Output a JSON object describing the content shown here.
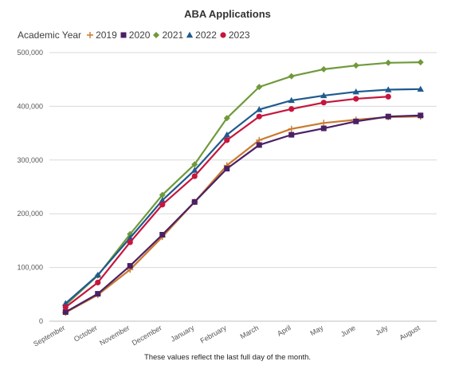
{
  "chart_data": {
    "type": "line",
    "title": "ABA Applications",
    "legend_title": "Academic Year",
    "legend_position": "top-left",
    "xlabel": "",
    "ylabel": "",
    "ylim": [
      0,
      500000
    ],
    "y_ticks": [
      "0",
      "100,000",
      "200,000",
      "300,000",
      "400,000",
      "500,000"
    ],
    "y_tick_values": [
      0,
      100000,
      200000,
      300000,
      400000,
      500000
    ],
    "grid": true,
    "categories": [
      "September",
      "October",
      "November",
      "December",
      "January",
      "February",
      "March",
      "April",
      "May",
      "June",
      "July",
      "August"
    ],
    "series": [
      {
        "name": "2019",
        "color": "#c97a2f",
        "marker": "plus",
        "values": [
          16000,
          49000,
          96000,
          157000,
          222000,
          290000,
          337000,
          358000,
          369000,
          375000,
          380000,
          381000
        ]
      },
      {
        "name": "2020",
        "color": "#4b2065",
        "marker": "square",
        "values": [
          17000,
          51000,
          103000,
          161000,
          222000,
          284000,
          328000,
          347000,
          359000,
          372000,
          381000,
          383000
        ]
      },
      {
        "name": "2021",
        "color": "#6f9a3a",
        "marker": "diamond",
        "values": [
          30000,
          85000,
          162000,
          235000,
          292000,
          378000,
          436000,
          456000,
          469000,
          476000,
          481000,
          482000
        ]
      },
      {
        "name": "2022",
        "color": "#1f5a8e",
        "marker": "triangle",
        "values": [
          33000,
          86000,
          155000,
          225000,
          281000,
          347000,
          394000,
          411000,
          420000,
          427000,
          431000,
          432000
        ]
      },
      {
        "name": "2023",
        "color": "#c5163e",
        "marker": "circle",
        "values": [
          26000,
          72000,
          147000,
          217000,
          270000,
          337000,
          381000,
          395000,
          407000,
          414000,
          418000,
          null
        ]
      }
    ]
  },
  "footnote": "These values reflect the last full day of the month."
}
